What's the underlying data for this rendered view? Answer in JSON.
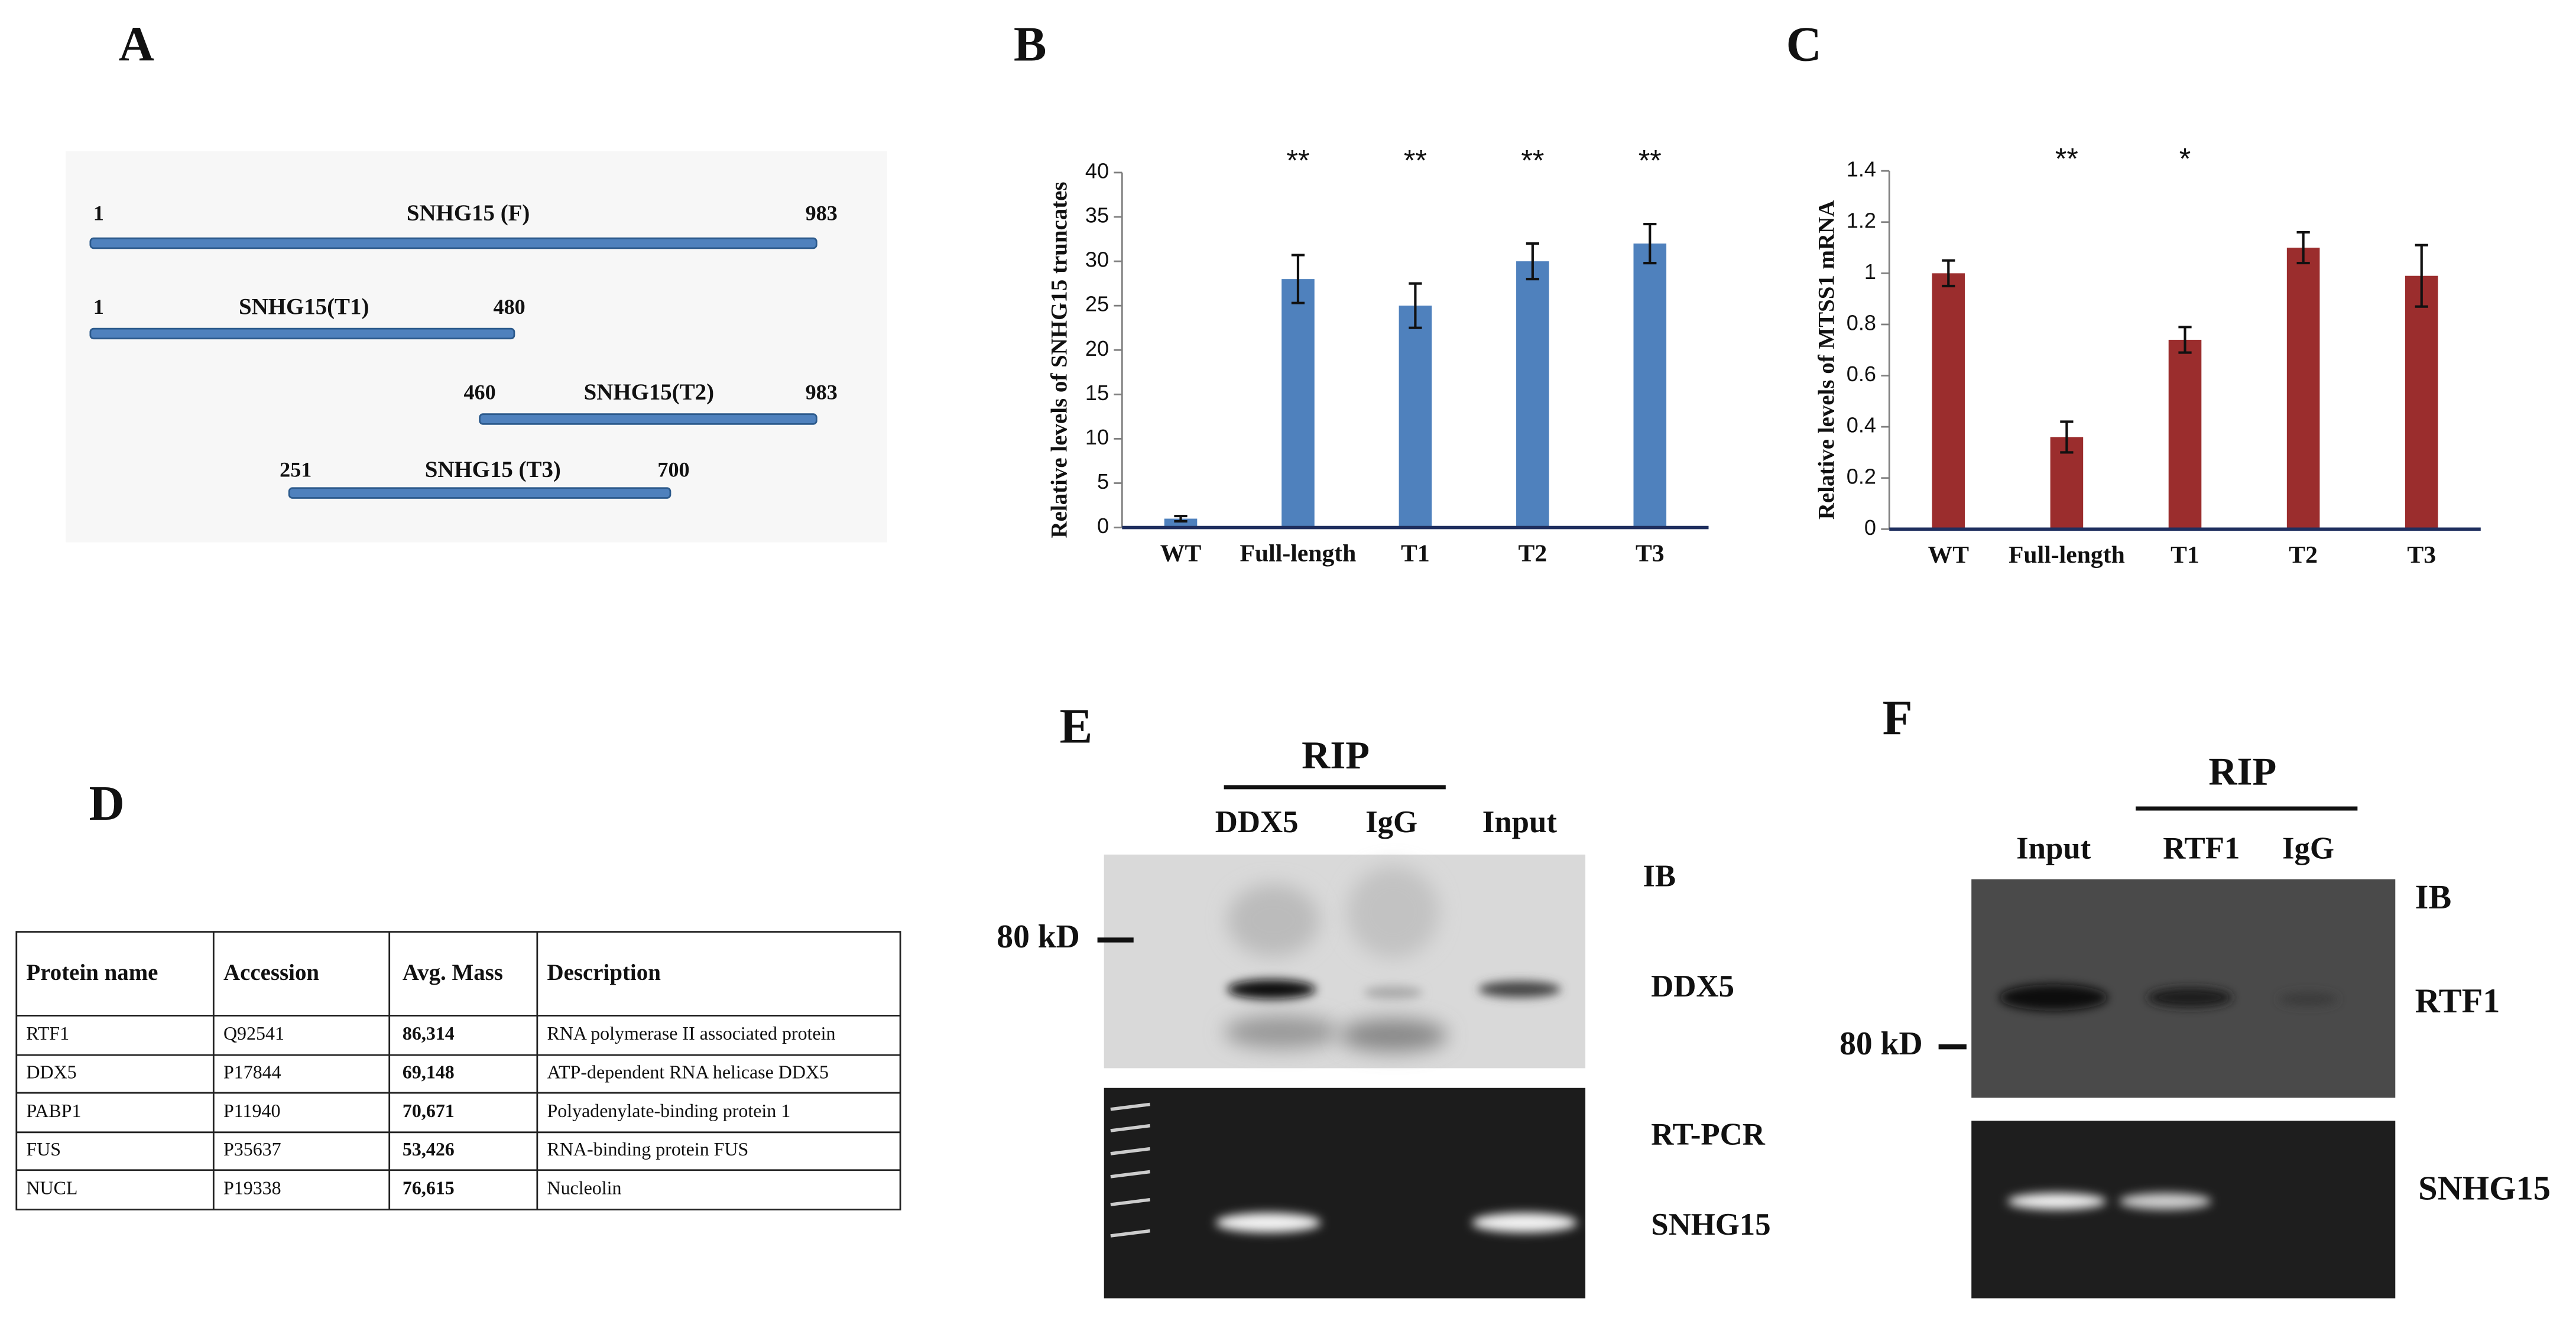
{
  "chart_data": [
    {
      "type": "bar",
      "panel_label": "B",
      "y_label": "Relative levels of SNHG15 truncates",
      "categories": [
        "WT",
        "Full-length",
        "T1",
        "T2",
        "T3"
      ],
      "values": [
        1,
        28,
        25,
        30,
        32
      ],
      "errors": [
        0.3,
        2.7,
        2.5,
        2,
        2.2
      ],
      "annotations": [
        null,
        "**",
        "**",
        "**",
        "**"
      ],
      "color": "#4f81bd",
      "ylim": [
        0,
        40
      ],
      "yticks": [
        0,
        5,
        10,
        15,
        20,
        25,
        30,
        35,
        40
      ]
    },
    {
      "type": "bar",
      "panel_label": "C",
      "y_label": "Relative levels of MTSS1 mRNA",
      "categories": [
        "WT",
        "Full-length",
        "T1",
        "T2",
        "T3"
      ],
      "values": [
        1,
        0.36,
        0.74,
        1.1,
        0.99
      ],
      "errors": [
        0.05,
        0.06,
        0.05,
        0.06,
        0.12
      ],
      "annotations": [
        null,
        "**",
        "*",
        null,
        null
      ],
      "color": "#9b2d2d",
      "ylim": [
        0,
        1.4
      ],
      "yticks": [
        0,
        0.2,
        0.4,
        0.6,
        0.8,
        1,
        1.2,
        1.4
      ]
    }
  ],
  "panel_a": {
    "panel_label": "A",
    "constructs": [
      {
        "start": "1",
        "name": "SNHG15 (F)",
        "end": "983"
      },
      {
        "start": "1",
        "name": "SNHG15(T1)",
        "end": "480"
      },
      {
        "start": "460",
        "name": "SNHG15(T2)",
        "end": "983"
      },
      {
        "start": "251",
        "name": "SNHG15 (T3)",
        "end": "700"
      }
    ]
  },
  "table": {
    "panel_label": "D",
    "columns": [
      "Protein name",
      "Accession",
      "Avg. Mass",
      "Description"
    ],
    "rows": [
      [
        "RTF1",
        "Q92541",
        "86,314",
        "RNA polymerase II associated protein"
      ],
      [
        "DDX5",
        "P17844",
        "69,148",
        "ATP-dependent RNA helicase DDX5"
      ],
      [
        "PABP1",
        "P11940",
        "70,671",
        "Polyadenylate-binding protein 1"
      ],
      [
        "FUS",
        "P35637",
        "53,426",
        "RNA-binding protein FUS"
      ],
      [
        "NUCL",
        "P19338",
        "76,615",
        "Nucleolin"
      ]
    ]
  },
  "panel_e": {
    "panel_label": "E",
    "group": "RIP",
    "lanes": [
      "DDX5",
      "IgG",
      "Input"
    ],
    "marker": "80 kD",
    "blot_label": "IB",
    "blot_target": "DDX5",
    "gel_label": "RT-PCR",
    "gel_target": "SNHG15"
  },
  "panel_f": {
    "panel_label": "F",
    "group": "RIP",
    "lanes": [
      "Input",
      "RTF1",
      "IgG"
    ],
    "marker": "80 kD",
    "blot_label": "IB",
    "blot_target": "RTF1",
    "gel_target": "SNHG15"
  }
}
